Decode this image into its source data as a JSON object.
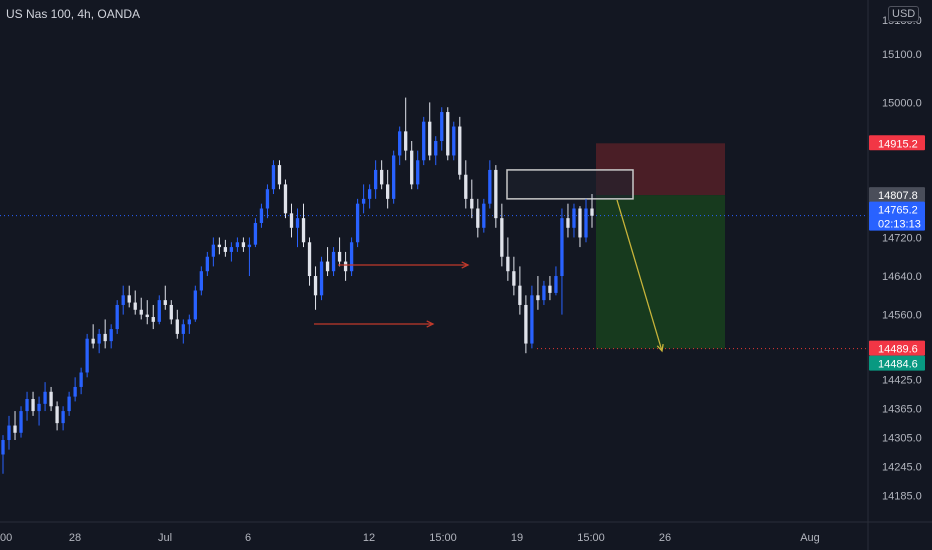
{
  "symbol_title": "US Nas 100, 4h, OANDA",
  "currency_button": "USD",
  "colors": {
    "background": "#131722",
    "bull": "#2962ff",
    "bear": "#e0e3eb",
    "grid": "#1e222d",
    "axis_text": "#b2b5be",
    "current_price_line": "#2962ff",
    "stop_zone": "#4a1e26",
    "target_zone": "#173a1e",
    "arrow_red": "#c0392b",
    "arrow_yellow": "#c8b43a"
  },
  "chart_data": {
    "type": "candlestick",
    "y_axis_ticks": [
      15100.0,
      15000.0,
      14720.0,
      14640.0,
      14560.0,
      14425.0,
      14365.0,
      14305.0,
      14245.0,
      14185.0
    ],
    "x_axis_ticks": [
      "00",
      "28",
      "Jul",
      "6",
      "12",
      "15:00",
      "19",
      "15:00",
      "26",
      "Aug"
    ],
    "price_labels": [
      {
        "text": "14915.2",
        "kind": "stop"
      },
      {
        "text": "14807.8",
        "kind": "entry"
      },
      {
        "text": "14765.2",
        "kind": "current"
      },
      {
        "text": "02:13:13",
        "kind": "countdown"
      },
      {
        "text": "14489.6",
        "kind": "target-red"
      },
      {
        "text": "14484.6",
        "kind": "target-green"
      }
    ],
    "annotations": [
      "supply zone rectangle at 14807.8",
      "red stop-loss zone 14807.8–14915.2",
      "green take-profit zone 14489.6–14807.8",
      "two red arrows pointing right from prior lows",
      "yellow arrow projecting down to 14489.6"
    ],
    "candles": [
      [
        14270,
        14310,
        14230,
        14300
      ],
      [
        14300,
        14350,
        14280,
        14330
      ],
      [
        14330,
        14360,
        14300,
        14315
      ],
      [
        14315,
        14370,
        14305,
        14360
      ],
      [
        14360,
        14400,
        14340,
        14385
      ],
      [
        14385,
        14400,
        14350,
        14360
      ],
      [
        14360,
        14390,
        14330,
        14375
      ],
      [
        14375,
        14420,
        14360,
        14400
      ],
      [
        14400,
        14410,
        14360,
        14370
      ],
      [
        14370,
        14380,
        14320,
        14335
      ],
      [
        14335,
        14370,
        14320,
        14360
      ],
      [
        14360,
        14400,
        14350,
        14390
      ],
      [
        14390,
        14430,
        14380,
        14410
      ],
      [
        14410,
        14450,
        14395,
        14440
      ],
      [
        14440,
        14520,
        14430,
        14510
      ],
      [
        14510,
        14540,
        14490,
        14500
      ],
      [
        14500,
        14530,
        14480,
        14520
      ],
      [
        14520,
        14550,
        14490,
        14505
      ],
      [
        14505,
        14540,
        14490,
        14530
      ],
      [
        14530,
        14590,
        14520,
        14580
      ],
      [
        14580,
        14620,
        14560,
        14600
      ],
      [
        14600,
        14620,
        14575,
        14585
      ],
      [
        14585,
        14610,
        14560,
        14570
      ],
      [
        14570,
        14595,
        14550,
        14560
      ],
      [
        14560,
        14590,
        14540,
        14555
      ],
      [
        14555,
        14580,
        14530,
        14545
      ],
      [
        14545,
        14600,
        14540,
        14590
      ],
      [
        14590,
        14620,
        14570,
        14580
      ],
      [
        14580,
        14590,
        14540,
        14550
      ],
      [
        14550,
        14570,
        14510,
        14520
      ],
      [
        14520,
        14550,
        14500,
        14540
      ],
      [
        14540,
        14560,
        14520,
        14550
      ],
      [
        14550,
        14620,
        14545,
        14610
      ],
      [
        14610,
        14660,
        14600,
        14650
      ],
      [
        14650,
        14690,
        14640,
        14680
      ],
      [
        14680,
        14720,
        14660,
        14705
      ],
      [
        14705,
        14720,
        14685,
        14700
      ],
      [
        14700,
        14715,
        14680,
        14690
      ],
      [
        14690,
        14710,
        14670,
        14700
      ],
      [
        14700,
        14720,
        14690,
        14710
      ],
      [
        14710,
        14720,
        14690,
        14700
      ],
      [
        14700,
        14720,
        14640,
        14705
      ],
      [
        14705,
        14760,
        14700,
        14750
      ],
      [
        14750,
        14790,
        14740,
        14780
      ],
      [
        14780,
        14830,
        14760,
        14820
      ],
      [
        14820,
        14880,
        14810,
        14870
      ],
      [
        14870,
        14880,
        14820,
        14830
      ],
      [
        14830,
        14840,
        14760,
        14770
      ],
      [
        14770,
        14790,
        14720,
        14740
      ],
      [
        14740,
        14780,
        14700,
        14760
      ],
      [
        14760,
        14790,
        14700,
        14710
      ],
      [
        14710,
        14720,
        14620,
        14640
      ],
      [
        14640,
        14660,
        14570,
        14600
      ],
      [
        14600,
        14680,
        14590,
        14670
      ],
      [
        14670,
        14700,
        14640,
        14650
      ],
      [
        14650,
        14700,
        14640,
        14690
      ],
      [
        14690,
        14720,
        14660,
        14670
      ],
      [
        14670,
        14690,
        14630,
        14650
      ],
      [
        14650,
        14720,
        14640,
        14710
      ],
      [
        14710,
        14800,
        14700,
        14790
      ],
      [
        14790,
        14830,
        14770,
        14800
      ],
      [
        14800,
        14830,
        14780,
        14820
      ],
      [
        14820,
        14880,
        14800,
        14860
      ],
      [
        14860,
        14880,
        14820,
        14830
      ],
      [
        14830,
        14860,
        14780,
        14800
      ],
      [
        14800,
        14900,
        14790,
        14890
      ],
      [
        14890,
        14950,
        14870,
        14940
      ],
      [
        14940,
        15010,
        14880,
        14900
      ],
      [
        14900,
        14920,
        14820,
        14830
      ],
      [
        14830,
        14900,
        14820,
        14880
      ],
      [
        14880,
        14970,
        14870,
        14960
      ],
      [
        14960,
        15000,
        14880,
        14890
      ],
      [
        14890,
        14930,
        14870,
        14920
      ],
      [
        14920,
        14990,
        14900,
        14980
      ],
      [
        14980,
        14990,
        14880,
        14890
      ],
      [
        14890,
        14960,
        14880,
        14950
      ],
      [
        14950,
        14970,
        14840,
        14850
      ],
      [
        14850,
        14880,
        14780,
        14800
      ],
      [
        14800,
        14840,
        14760,
        14780
      ],
      [
        14780,
        14800,
        14720,
        14740
      ],
      [
        14740,
        14800,
        14730,
        14790
      ],
      [
        14790,
        14880,
        14780,
        14860
      ],
      [
        14860,
        14870,
        14740,
        14760
      ],
      [
        14760,
        14790,
        14660,
        14680
      ],
      [
        14680,
        14720,
        14630,
        14650
      ],
      [
        14650,
        14680,
        14600,
        14620
      ],
      [
        14620,
        14660,
        14560,
        14580
      ],
      [
        14580,
        14600,
        14480,
        14500
      ],
      [
        14500,
        14620,
        14490,
        14600
      ],
      [
        14600,
        14640,
        14570,
        14590
      ],
      [
        14590,
        14630,
        14580,
        14620
      ],
      [
        14620,
        14640,
        14590,
        14605
      ],
      [
        14605,
        14660,
        14600,
        14640
      ],
      [
        14640,
        14780,
        14560,
        14760
      ],
      [
        14760,
        14790,
        14720,
        14740
      ],
      [
        14740,
        14790,
        14720,
        14780
      ],
      [
        14780,
        14785,
        14700,
        14720
      ],
      [
        14720,
        14800,
        14710,
        14780
      ],
      [
        14780,
        14810,
        14740,
        14765
      ]
    ],
    "ylim": [
      14130,
      15175
    ],
    "grid": false
  }
}
